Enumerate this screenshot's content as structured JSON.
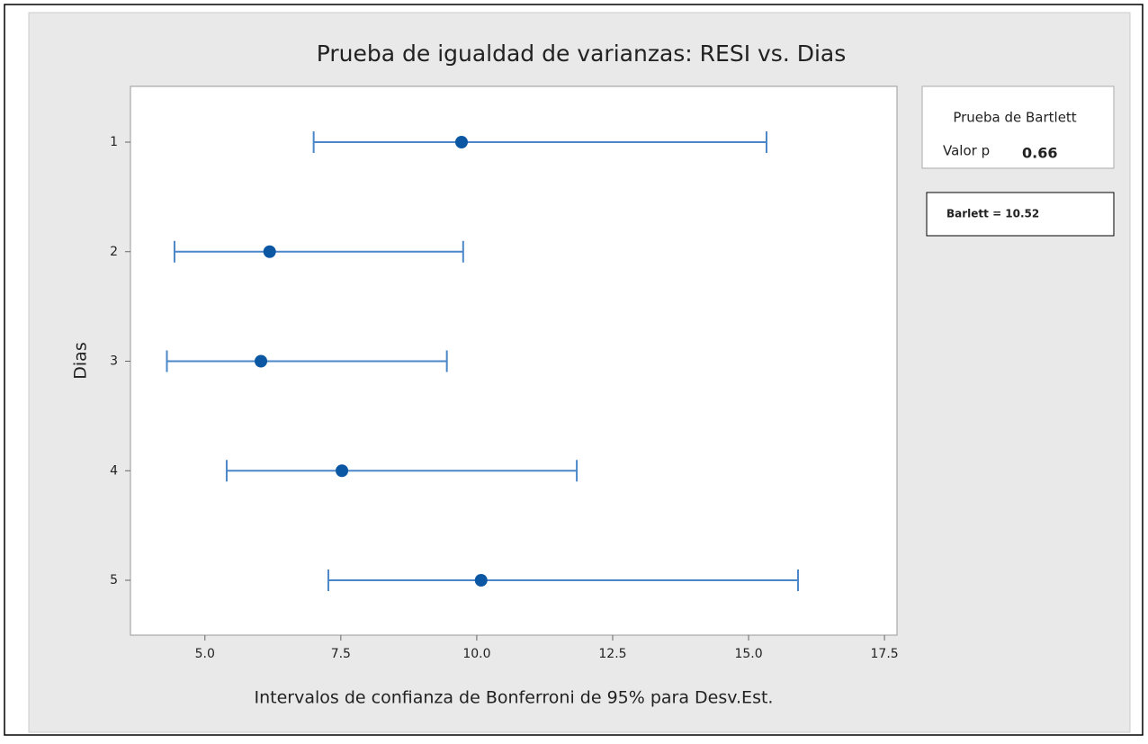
{
  "chart_data": {
    "type": "interval",
    "title": "Prueba de igualdad de varianzas: RESI vs. Dias",
    "x_label": "Intervalos de confianza de Bonferroni de 95% para Desv.Est.",
    "y_label": "Dias",
    "categories": [
      "1",
      "2",
      "3",
      "4",
      "5"
    ],
    "values": [
      9.72,
      6.19,
      6.03,
      7.52,
      10.08
    ],
    "lower": [
      7.0,
      4.44,
      4.3,
      5.4,
      7.27
    ],
    "upper": [
      15.33,
      9.75,
      9.45,
      11.84,
      15.91
    ],
    "line_color": "#4a86c8",
    "point_color": "#0b57a4",
    "xlim": [
      3.63,
      17.73
    ],
    "xticks": [
      {
        "value": 5,
        "label": "5.0"
      },
      {
        "value": 7.5,
        "label": "7.5"
      },
      {
        "value": 10,
        "label": "10.0"
      },
      {
        "value": 12.5,
        "label": "12.5"
      },
      {
        "value": 15,
        "label": "15.0"
      },
      {
        "value": 17.5,
        "label": "17.5"
      }
    ],
    "legend": {
      "title": "Prueba de Bartlett",
      "label": "Valor p",
      "value": 0.66
    },
    "annotation": "Barlett = 10.52"
  }
}
